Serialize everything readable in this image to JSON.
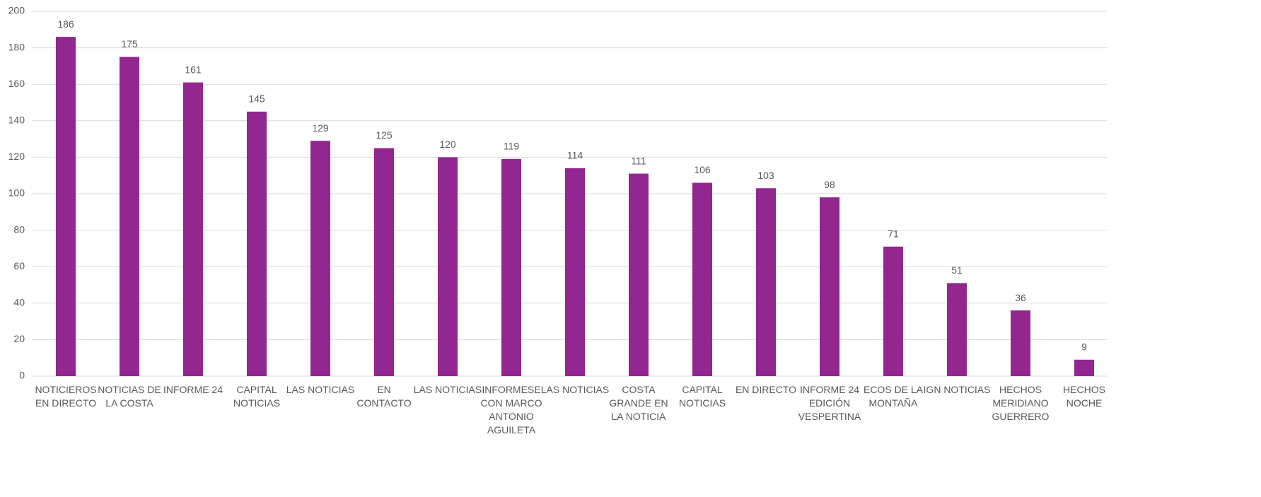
{
  "chart_data": {
    "type": "bar",
    "categories": [
      "NOTICIEROS\nEN DIRECTO",
      "NOTICIAS DE\nLA COSTA",
      "INFORME 24",
      "CAPITAL\nNOTICIAS",
      "LAS NOTICIAS",
      "EN\nCONTACTO",
      "LAS NOTICIAS",
      "INFORMESE\nCON MARCO\nANTONIO\nAGUILETA",
      "LAS NOTICIAS",
      "COSTA\nGRANDE EN\nLA NOTICIA",
      "CAPITAL\nNOTICIAS",
      "EN DIRECTO",
      "INFORME 24\nEDICIÓN\nVESPERTINA",
      "ECOS DE LA\nMONTAÑA",
      "IGN NOTICIAS",
      "HECHOS\nMERIDIANO\nGUERRERO",
      "HECHOS\nNOCHE"
    ],
    "values": [
      186,
      175,
      161,
      145,
      129,
      125,
      120,
      119,
      114,
      111,
      106,
      103,
      98,
      71,
      51,
      36,
      9
    ],
    "color": "#92278f",
    "ylim": [
      0,
      200
    ],
    "yticks": [
      0,
      20,
      40,
      60,
      80,
      100,
      120,
      140,
      160,
      180,
      200
    ],
    "grid": true
  }
}
